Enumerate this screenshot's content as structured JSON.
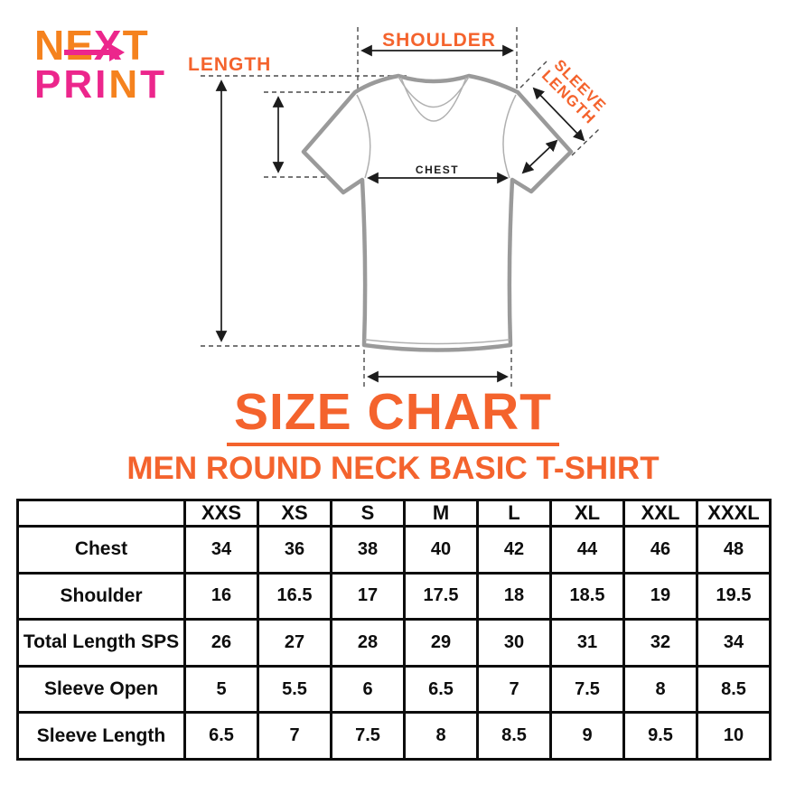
{
  "colors": {
    "logo_orange": "#F5821E",
    "logo_pink": "#EC268C",
    "accent_orange": "#F4632D",
    "shirt_gray": "#9A9A9A",
    "line_dark": "#1c1c1c"
  },
  "logo": {
    "line1_letters": [
      {
        "ch": "N",
        "tone": "orange"
      },
      {
        "ch": "E",
        "tone": "orange"
      },
      {
        "ch": "X",
        "tone": "pink"
      },
      {
        "ch": "T",
        "tone": "orange"
      }
    ],
    "line2_letters": [
      {
        "ch": "P",
        "tone": "pink"
      },
      {
        "ch": "R",
        "tone": "pink"
      },
      {
        "ch": "I",
        "tone": "pink"
      },
      {
        "ch": "N",
        "tone": "orange"
      },
      {
        "ch": "T",
        "tone": "pink"
      }
    ]
  },
  "diagram": {
    "labels": {
      "length": "LENGTH",
      "shoulder": "SHOULDER",
      "sleeve_line1": "SLEEVE",
      "sleeve_line2": "LENGTH",
      "chest": "CHEST"
    }
  },
  "title": "SIZE CHART",
  "subtitle": "MEN ROUND NECK BASIC T-SHIRT",
  "table": {
    "size_headers": [
      "XXS",
      "XS",
      "S",
      "M",
      "L",
      "XL",
      "XXL",
      "XXXL"
    ],
    "rows": [
      {
        "label": "Chest",
        "values": [
          "34",
          "36",
          "38",
          "40",
          "42",
          "44",
          "46",
          "48"
        ]
      },
      {
        "label": "Shoulder",
        "values": [
          "16",
          "16.5",
          "17",
          "17.5",
          "18",
          "18.5",
          "19",
          "19.5"
        ]
      },
      {
        "label": "Total Length SPS",
        "values": [
          "26",
          "27",
          "28",
          "29",
          "30",
          "31",
          "32",
          "34"
        ]
      },
      {
        "label": "Sleeve Open",
        "values": [
          "5",
          "5.5",
          "6",
          "6.5",
          "7",
          "7.5",
          "8",
          "8.5"
        ]
      },
      {
        "label": "Sleeve Length",
        "values": [
          "6.5",
          "7",
          "7.5",
          "8",
          "8.5",
          "9",
          "9.5",
          "10"
        ]
      }
    ]
  }
}
